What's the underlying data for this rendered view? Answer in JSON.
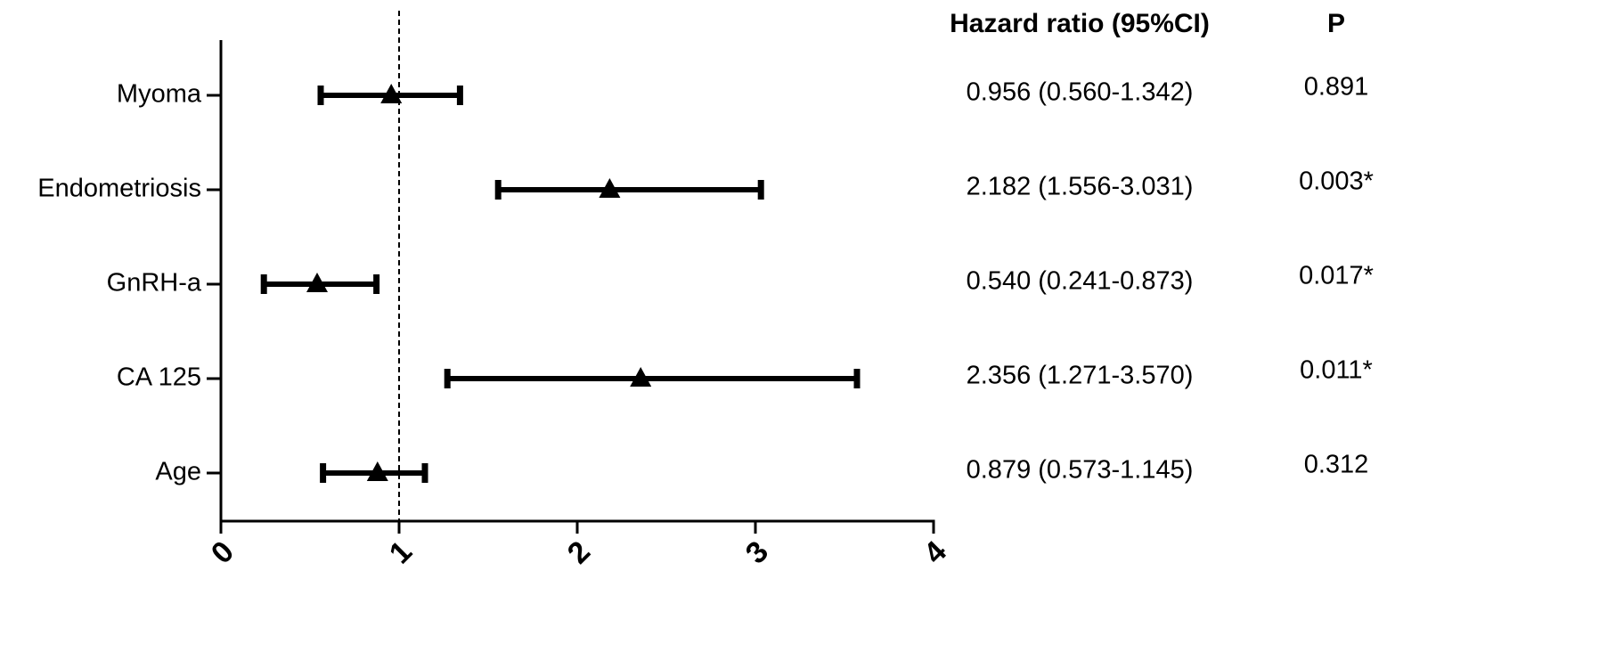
{
  "chart_data": {
    "type": "forest",
    "categories": [
      "Myoma",
      "Endometriosis",
      "GnRH-a",
      "CA 125",
      "Age"
    ],
    "values": [
      0.956,
      2.182,
      0.54,
      2.356,
      0.879
    ],
    "lower": [
      0.56,
      1.556,
      0.241,
      1.271,
      0.573
    ],
    "upper": [
      1.342,
      3.031,
      0.873,
      3.57,
      1.145
    ],
    "value_labels": [
      "0.956 (0.560-1.342)",
      "2.182 (1.556-3.031)",
      "0.540 (0.241-0.873)",
      "2.356 (1.271-3.570)",
      "0.879 (0.573-1.145)"
    ],
    "p_values": [
      "0.891",
      "0.003*",
      "0.017*",
      "0.011*",
      "0.312"
    ],
    "columns": [
      "Hazard ratio (95%CI)",
      "P"
    ],
    "reference_line": 1,
    "color": "#000000",
    "xlim": [
      0,
      4
    ],
    "xticks": [
      0,
      1,
      2,
      3,
      4
    ]
  }
}
